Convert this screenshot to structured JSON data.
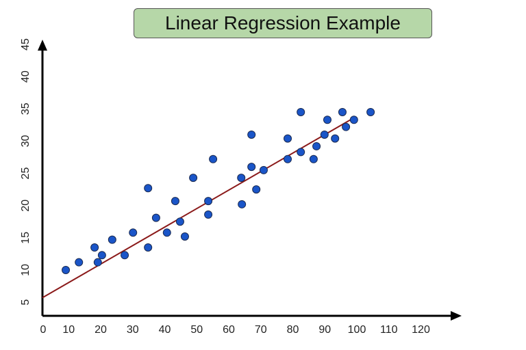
{
  "chart_data": {
    "type": "scatter",
    "title": "Linear Regression Example",
    "xlabel": "",
    "ylabel": "",
    "xlim": [
      0,
      125
    ],
    "ylim": [
      3,
      45
    ],
    "x_ticks": [
      0,
      10,
      20,
      30,
      40,
      50,
      60,
      70,
      80,
      90,
      100,
      110,
      120
    ],
    "y_ticks": [
      5,
      10,
      15,
      20,
      25,
      30,
      35,
      40,
      45
    ],
    "grid": false,
    "point_color": "#1a55c8",
    "line_color": "#8b1a1a",
    "points": [
      [
        9.1,
        10.0
      ],
      [
        13.2,
        11.2
      ],
      [
        18.1,
        13.5
      ],
      [
        19.1,
        11.2
      ],
      [
        20.4,
        12.3
      ],
      [
        23.6,
        14.7
      ],
      [
        27.5,
        12.3
      ],
      [
        30.1,
        15.8
      ],
      [
        34.8,
        22.7
      ],
      [
        34.8,
        13.5
      ],
      [
        37.3,
        18.1
      ],
      [
        40.7,
        15.8
      ],
      [
        43.3,
        20.7
      ],
      [
        44.8,
        17.5
      ],
      [
        46.3,
        15.2
      ],
      [
        48.9,
        24.3
      ],
      [
        53.6,
        20.7
      ],
      [
        53.6,
        18.6
      ],
      [
        55.1,
        27.2
      ],
      [
        63.9,
        24.3
      ],
      [
        64.1,
        20.2
      ],
      [
        67.1,
        31.0
      ],
      [
        67.1,
        26.0
      ],
      [
        68.6,
        22.5
      ],
      [
        70.9,
        25.5
      ],
      [
        78.4,
        30.4
      ],
      [
        78.4,
        27.2
      ],
      [
        82.5,
        34.5
      ],
      [
        82.5,
        28.3
      ],
      [
        86.5,
        27.2
      ],
      [
        87.4,
        29.2
      ],
      [
        90.8,
        33.3
      ],
      [
        89.9,
        31.0
      ],
      [
        93.2,
        30.4
      ],
      [
        95.5,
        34.5
      ],
      [
        96.6,
        32.2
      ],
      [
        99.1,
        33.3
      ],
      [
        104.3,
        34.5
      ]
    ],
    "regression_line": {
      "x": [
        1.8,
        98
      ],
      "y": [
        5.7,
        33.3
      ]
    }
  }
}
